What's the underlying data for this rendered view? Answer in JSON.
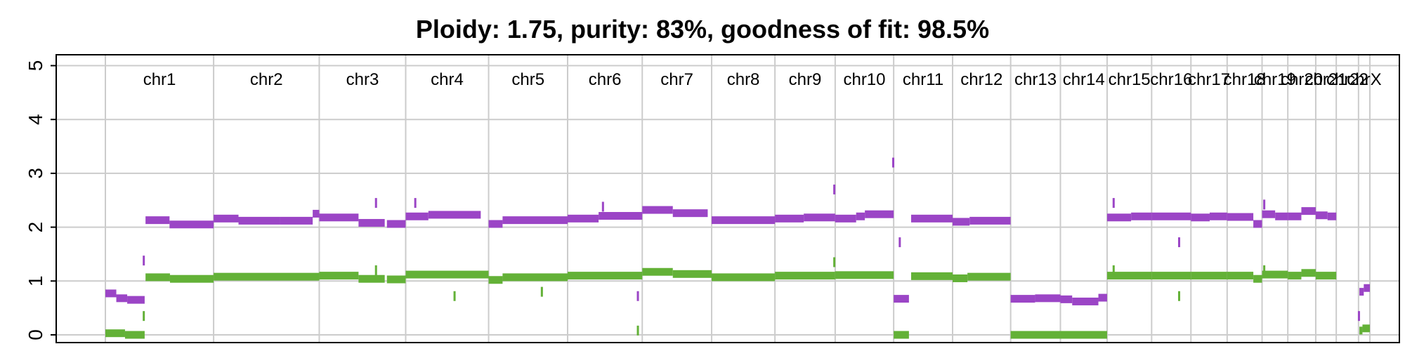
{
  "chart_data": {
    "type": "scatter",
    "title": "Ploidy: 1.75, purity: 83%, goodness of fit: 98.5%",
    "xlabel": "",
    "ylabel": "",
    "ylim": [
      0,
      5
    ],
    "yticks": [
      "0",
      "1",
      "2",
      "3",
      "4",
      "5"
    ],
    "grid": true,
    "colors": {
      "total": "#9b45c6",
      "minor": "#63b137",
      "grid": "#cccccc"
    },
    "chromosomes": [
      {
        "name": "chr1",
        "start": 0,
        "end": 248
      },
      {
        "name": "chr2",
        "start": 248,
        "end": 490
      },
      {
        "name": "chr3",
        "start": 490,
        "end": 688
      },
      {
        "name": "chr4",
        "start": 688,
        "end": 878
      },
      {
        "name": "chr5",
        "start": 878,
        "end": 1059
      },
      {
        "name": "chr6",
        "start": 1059,
        "end": 1230
      },
      {
        "name": "chr7",
        "start": 1230,
        "end": 1389
      },
      {
        "name": "chr8",
        "start": 1389,
        "end": 1534
      },
      {
        "name": "chr9",
        "start": 1534,
        "end": 1672
      },
      {
        "name": "chr10",
        "start": 1672,
        "end": 1806
      },
      {
        "name": "chr11",
        "start": 1806,
        "end": 1941
      },
      {
        "name": "chr12",
        "start": 1941,
        "end": 2074
      },
      {
        "name": "chr13",
        "start": 2074,
        "end": 2188
      },
      {
        "name": "chr14",
        "start": 2188,
        "end": 2295
      },
      {
        "name": "chr15",
        "start": 2295,
        "end": 2397
      },
      {
        "name": "chr16",
        "start": 2397,
        "end": 2487
      },
      {
        "name": "chr17",
        "start": 2487,
        "end": 2570
      },
      {
        "name": "chr18",
        "start": 2570,
        "end": 2650
      },
      {
        "name": "chr19",
        "start": 2650,
        "end": 2709
      },
      {
        "name": "chr20",
        "start": 2709,
        "end": 2773
      },
      {
        "name": "chr21",
        "start": 2773,
        "end": 2820
      },
      {
        "name": "chr22",
        "start": 2820,
        "end": 2871
      },
      {
        "name": "chrX",
        "start": 2871,
        "end": 2897
      }
    ],
    "series": [
      {
        "key": "total",
        "segments": [
          [
            0,
            25,
            0.77
          ],
          [
            25,
            50,
            0.68
          ],
          [
            50,
            90,
            0.65
          ],
          [
            92,
            147,
            2.13
          ],
          [
            147,
            248,
            2.05
          ],
          [
            248,
            305,
            2.16
          ],
          [
            305,
            400,
            2.12
          ],
          [
            400,
            475,
            2.12
          ],
          [
            475,
            490,
            2.25
          ],
          [
            490,
            580,
            2.18
          ],
          [
            580,
            640,
            2.08
          ],
          [
            645,
            688,
            2.06
          ],
          [
            688,
            740,
            2.2
          ],
          [
            740,
            860,
            2.23
          ],
          [
            878,
            910,
            2.06
          ],
          [
            910,
            1059,
            2.13
          ],
          [
            1059,
            1130,
            2.16
          ],
          [
            1130,
            1230,
            2.21
          ],
          [
            1230,
            1300,
            2.32
          ],
          [
            1300,
            1380,
            2.26
          ],
          [
            1389,
            1534,
            2.13
          ],
          [
            1534,
            1600,
            2.16
          ],
          [
            1600,
            1672,
            2.18
          ],
          [
            1672,
            1720,
            2.16
          ],
          [
            1720,
            1740,
            2.2
          ],
          [
            1740,
            1806,
            2.24
          ],
          [
            1806,
            1841,
            0.67
          ],
          [
            1846,
            1941,
            2.16
          ],
          [
            1941,
            1980,
            2.1
          ],
          [
            1980,
            2074,
            2.12
          ],
          [
            2074,
            2130,
            0.67
          ],
          [
            2130,
            2188,
            0.68
          ],
          [
            2188,
            2215,
            0.66
          ],
          [
            2215,
            2275,
            0.62
          ],
          [
            2275,
            2295,
            0.69
          ],
          [
            2295,
            2350,
            2.18
          ],
          [
            2350,
            2397,
            2.2
          ],
          [
            2397,
            2487,
            2.2
          ],
          [
            2487,
            2530,
            2.18
          ],
          [
            2530,
            2570,
            2.2
          ],
          [
            2570,
            2630,
            2.19
          ],
          [
            2630,
            2650,
            2.06
          ],
          [
            2650,
            2680,
            2.24
          ],
          [
            2680,
            2709,
            2.2
          ],
          [
            2709,
            2740,
            2.2
          ],
          [
            2740,
            2773,
            2.3
          ],
          [
            2773,
            2800,
            2.22
          ],
          [
            2800,
            2820,
            2.2
          ],
          [
            2873,
            2883,
            0.8
          ],
          [
            2883,
            2897,
            0.87
          ]
        ]
      },
      {
        "key": "minor",
        "segments": [
          [
            0,
            45,
            0.03
          ],
          [
            45,
            90,
            0.0
          ],
          [
            92,
            148,
            1.07
          ],
          [
            148,
            248,
            1.04
          ],
          [
            248,
            490,
            1.08
          ],
          [
            490,
            580,
            1.1
          ],
          [
            580,
            640,
            1.04
          ],
          [
            645,
            688,
            1.03
          ],
          [
            688,
            878,
            1.12
          ],
          [
            878,
            910,
            1.02
          ],
          [
            910,
            1059,
            1.07
          ],
          [
            1059,
            1230,
            1.1
          ],
          [
            1230,
            1300,
            1.17
          ],
          [
            1300,
            1389,
            1.13
          ],
          [
            1389,
            1534,
            1.07
          ],
          [
            1534,
            1672,
            1.1
          ],
          [
            1672,
            1806,
            1.11
          ],
          [
            1806,
            1841,
            0.0
          ],
          [
            1846,
            1941,
            1.09
          ],
          [
            1941,
            1975,
            1.05
          ],
          [
            1975,
            2074,
            1.08
          ],
          [
            2074,
            2188,
            0.0
          ],
          [
            2188,
            2295,
            0.0
          ],
          [
            2295,
            2397,
            1.1
          ],
          [
            2397,
            2487,
            1.1
          ],
          [
            2487,
            2570,
            1.1
          ],
          [
            2570,
            2630,
            1.1
          ],
          [
            2630,
            2650,
            1.04
          ],
          [
            2650,
            2709,
            1.12
          ],
          [
            2709,
            2740,
            1.1
          ],
          [
            2740,
            2773,
            1.15
          ],
          [
            2773,
            2820,
            1.1
          ],
          [
            2873,
            2880,
            0.08
          ],
          [
            2880,
            2897,
            0.12
          ]
        ]
      }
    ],
    "outliers": [
      {
        "series": "total",
        "x": 88,
        "y": 1.38
      },
      {
        "series": "total",
        "x": 620,
        "y": 2.45
      },
      {
        "series": "total",
        "x": 710,
        "y": 2.45
      },
      {
        "series": "total",
        "x": 1140,
        "y": 2.38
      },
      {
        "series": "total",
        "x": 1670,
        "y": 2.7
      },
      {
        "series": "total",
        "x": 1805,
        "y": 3.2
      },
      {
        "series": "total",
        "x": 1820,
        "y": 1.72
      },
      {
        "series": "total",
        "x": 2310,
        "y": 2.45
      },
      {
        "series": "total",
        "x": 2460,
        "y": 1.72
      },
      {
        "series": "total",
        "x": 2655,
        "y": 2.42
      },
      {
        "series": "total",
        "x": 1220,
        "y": 0.72
      },
      {
        "series": "total",
        "x": 2872,
        "y": 0.35
      },
      {
        "series": "minor",
        "x": 88,
        "y": 0.35
      },
      {
        "series": "minor",
        "x": 620,
        "y": 1.2
      },
      {
        "series": "minor",
        "x": 800,
        "y": 0.72
      },
      {
        "series": "minor",
        "x": 1000,
        "y": 0.8
      },
      {
        "series": "minor",
        "x": 1220,
        "y": 0.08
      },
      {
        "series": "minor",
        "x": 1670,
        "y": 1.35
      },
      {
        "series": "minor",
        "x": 2310,
        "y": 1.2
      },
      {
        "series": "minor",
        "x": 2460,
        "y": 0.72
      },
      {
        "series": "minor",
        "x": 2655,
        "y": 1.2
      }
    ]
  }
}
